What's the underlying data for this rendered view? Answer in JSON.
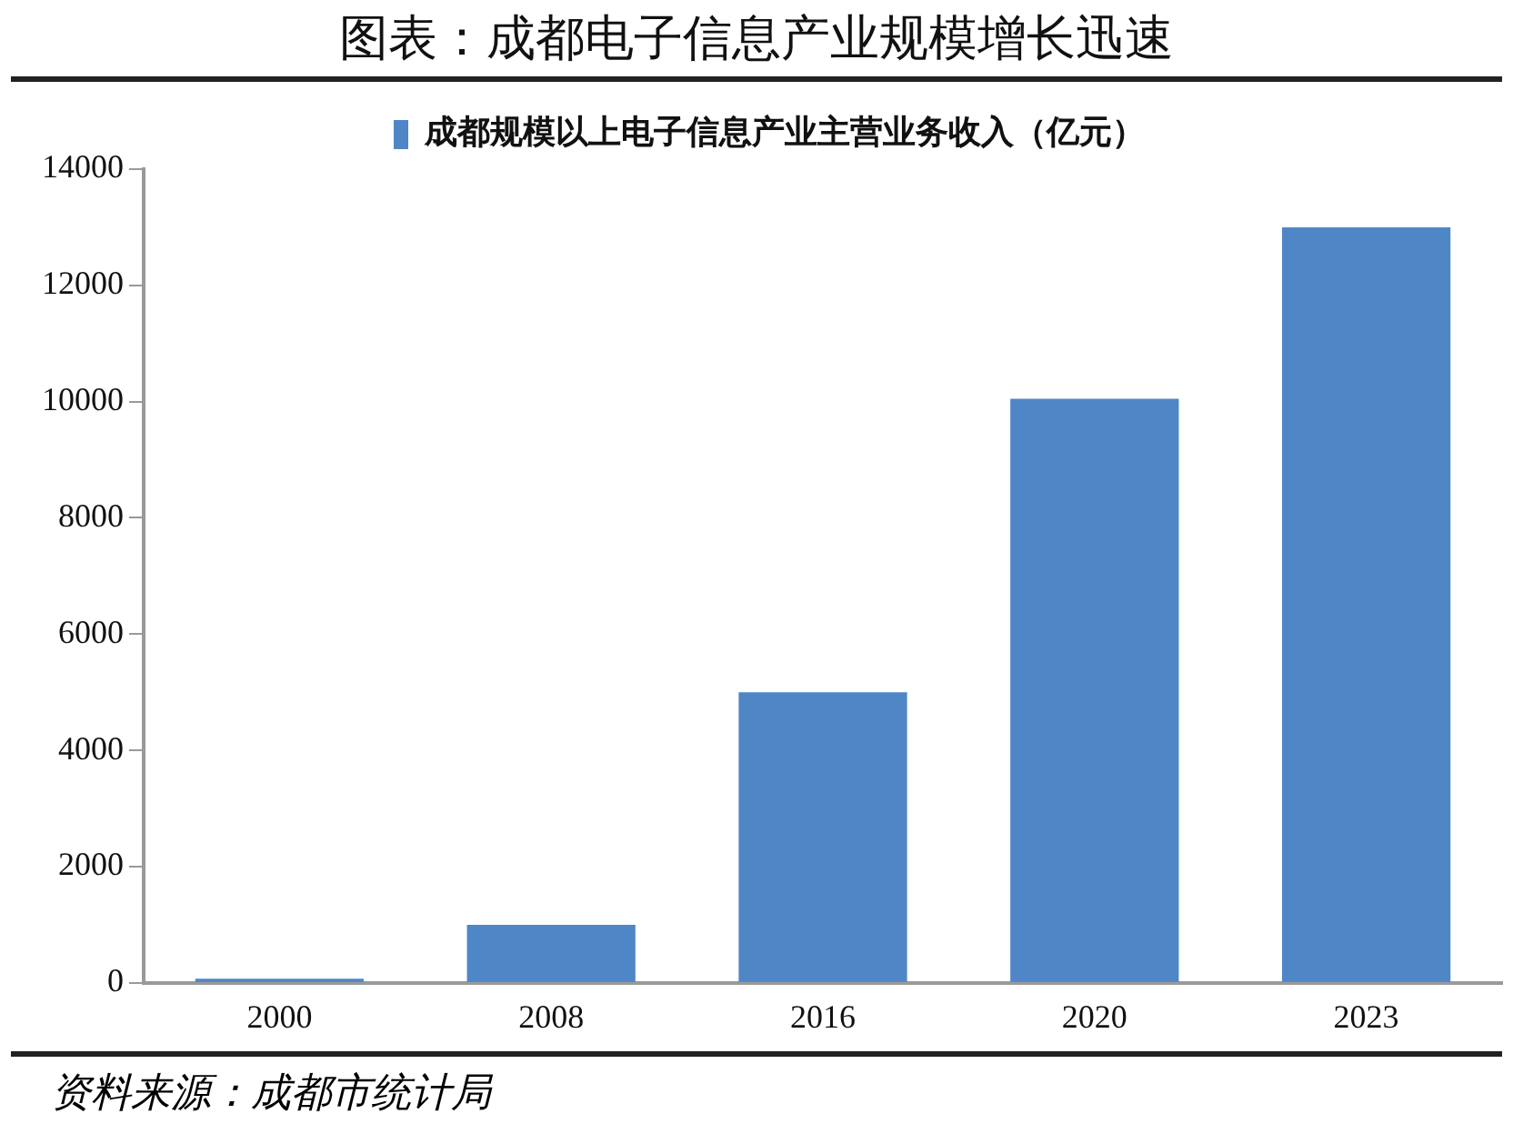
{
  "chart_data": {
    "type": "bar",
    "title": "图表：成都电子信息产业规模增长迅速",
    "categories": [
      "2000",
      "2008",
      "2016",
      "2020",
      "2023"
    ],
    "series": [
      {
        "name": "成都规模以上电子信息产业主营业务收入（亿元）",
        "color": "#4f86c6",
        "values": [
          70,
          1000,
          5000,
          10050,
          13000
        ]
      }
    ],
    "ylim": [
      0,
      14000
    ],
    "yticks": [
      0,
      2000,
      4000,
      6000,
      8000,
      10000,
      12000,
      14000
    ],
    "grid": false,
    "legend": "top",
    "annotations": [
      "资料来源：成都市统计局"
    ]
  }
}
